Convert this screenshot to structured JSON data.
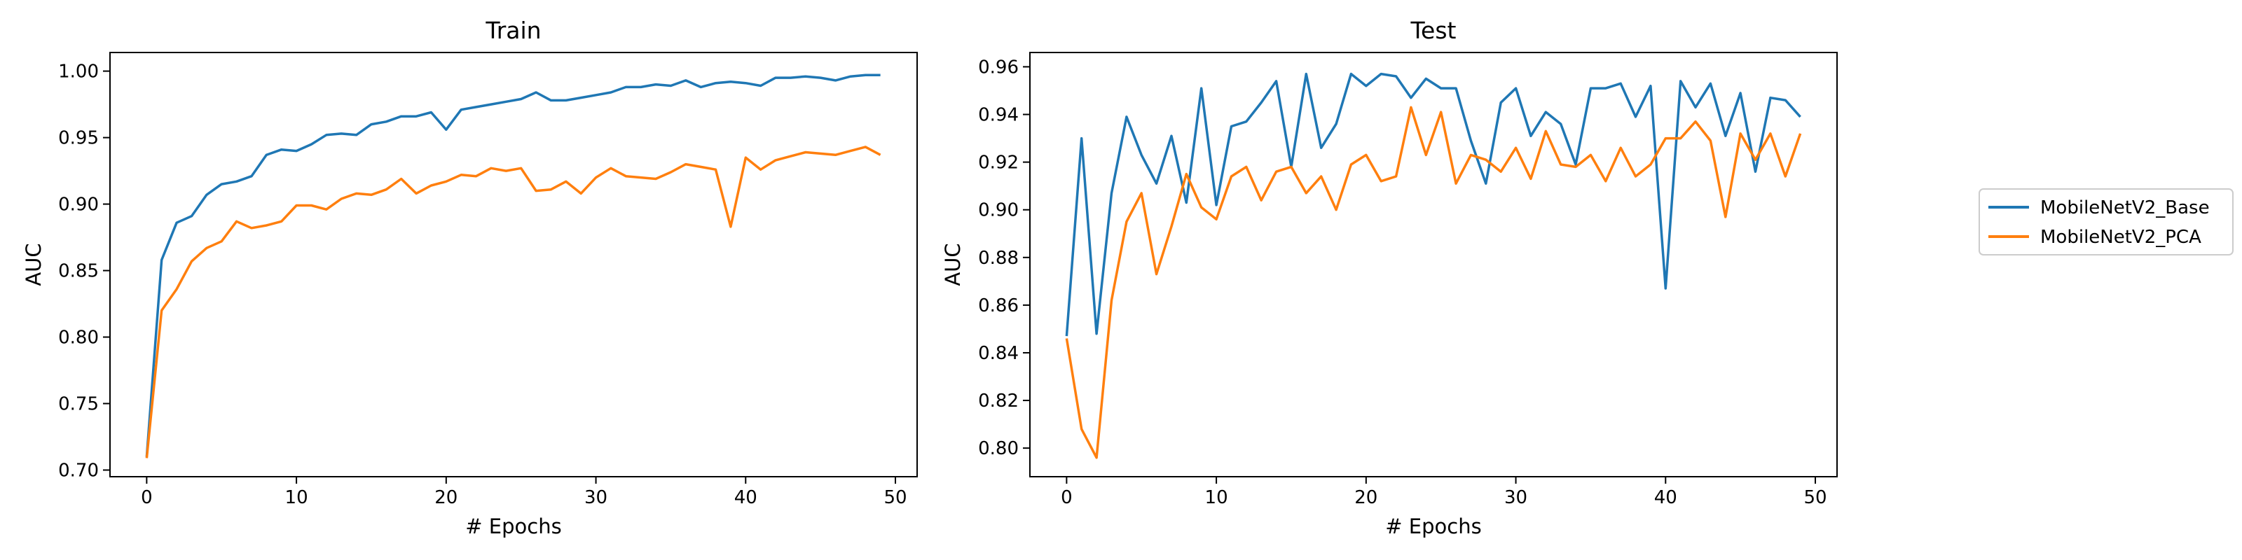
{
  "colors": {
    "MobileNetV2_Base": "#1f77b4",
    "MobileNetV2_PCA": "#ff7f0e"
  },
  "legend": {
    "placement": "outside-right",
    "entries": [
      "MobileNetV2_Base",
      "MobileNetV2_PCA"
    ]
  },
  "chart_data": [
    {
      "type": "line",
      "title": "Train",
      "xlabel": "# Epochs",
      "ylabel": "AUC",
      "xlim": [
        -2.45,
        51.45
      ],
      "ylim": [
        0.695,
        1.014
      ],
      "xticks": [
        0,
        10,
        20,
        30,
        40,
        50
      ],
      "yticks": [
        0.7,
        0.75,
        0.8,
        0.85,
        0.9,
        0.95,
        1.0
      ],
      "ytick_labels": [
        "0.70",
        "0.75",
        "0.80",
        "0.85",
        "0.90",
        "0.95",
        "1.00"
      ],
      "grid": false,
      "x": [
        0,
        1,
        2,
        3,
        4,
        5,
        6,
        7,
        8,
        9,
        10,
        11,
        12,
        13,
        14,
        15,
        16,
        17,
        18,
        19,
        20,
        21,
        22,
        23,
        24,
        25,
        26,
        27,
        28,
        29,
        30,
        31,
        32,
        33,
        34,
        35,
        36,
        37,
        38,
        39,
        40,
        41,
        42,
        43,
        44,
        45,
        46,
        47,
        48,
        49
      ],
      "series": [
        {
          "name": "MobileNetV2_Base",
          "values": [
            0.71,
            0.858,
            0.886,
            0.891,
            0.907,
            0.915,
            0.917,
            0.921,
            0.937,
            0.941,
            0.94,
            0.945,
            0.952,
            0.953,
            0.952,
            0.96,
            0.962,
            0.966,
            0.966,
            0.969,
            0.956,
            0.971,
            0.973,
            0.975,
            0.977,
            0.979,
            0.984,
            0.978,
            0.978,
            0.98,
            0.982,
            0.984,
            0.988,
            0.988,
            0.99,
            0.989,
            0.993,
            0.988,
            0.991,
            0.992,
            0.991,
            0.989,
            0.995,
            0.995,
            0.996,
            0.995,
            0.993,
            0.996,
            0.997,
            0.997
          ]
        },
        {
          "name": "MobileNetV2_PCA",
          "values": [
            0.709,
            0.82,
            0.836,
            0.857,
            0.867,
            0.872,
            0.887,
            0.882,
            0.884,
            0.887,
            0.899,
            0.899,
            0.896,
            0.904,
            0.908,
            0.907,
            0.911,
            0.919,
            0.908,
            0.914,
            0.917,
            0.922,
            0.921,
            0.927,
            0.925,
            0.927,
            0.91,
            0.911,
            0.917,
            0.908,
            0.92,
            0.927,
            0.921,
            0.92,
            0.919,
            0.924,
            0.93,
            0.928,
            0.926,
            0.883,
            0.935,
            0.926,
            0.933,
            0.936,
            0.939,
            0.938,
            0.937,
            0.94,
            0.943,
            0.937
          ]
        }
      ]
    },
    {
      "type": "line",
      "title": "Test",
      "xlabel": "# Epochs",
      "ylabel": "AUC",
      "xlim": [
        -2.45,
        51.45
      ],
      "ylim": [
        0.788,
        0.966
      ],
      "xticks": [
        0,
        10,
        20,
        30,
        40,
        50
      ],
      "yticks": [
        0.8,
        0.82,
        0.84,
        0.86,
        0.88,
        0.9,
        0.92,
        0.94,
        0.96
      ],
      "ytick_labels": [
        "0.80",
        "0.82",
        "0.84",
        "0.86",
        "0.88",
        "0.90",
        "0.92",
        "0.94",
        "0.96"
      ],
      "grid": false,
      "x": [
        0,
        1,
        2,
        3,
        4,
        5,
        6,
        7,
        8,
        9,
        10,
        11,
        12,
        13,
        14,
        15,
        16,
        17,
        18,
        19,
        20,
        21,
        22,
        23,
        24,
        25,
        26,
        27,
        28,
        29,
        30,
        31,
        32,
        33,
        34,
        35,
        36,
        37,
        38,
        39,
        40,
        41,
        42,
        43,
        44,
        45,
        46,
        47,
        48,
        49
      ],
      "series": [
        {
          "name": "MobileNetV2_Base",
          "values": [
            0.847,
            0.93,
            0.848,
            0.907,
            0.939,
            0.923,
            0.911,
            0.931,
            0.903,
            0.951,
            0.902,
            0.935,
            0.937,
            0.945,
            0.954,
            0.918,
            0.957,
            0.926,
            0.936,
            0.957,
            0.952,
            0.957,
            0.956,
            0.947,
            0.955,
            0.951,
            0.951,
            0.929,
            0.911,
            0.945,
            0.951,
            0.931,
            0.941,
            0.936,
            0.919,
            0.951,
            0.951,
            0.953,
            0.939,
            0.952,
            0.867,
            0.954,
            0.943,
            0.953,
            0.931,
            0.949,
            0.916,
            0.947,
            0.946,
            0.939
          ]
        },
        {
          "name": "MobileNetV2_PCA",
          "values": [
            0.846,
            0.808,
            0.796,
            0.862,
            0.895,
            0.907,
            0.873,
            0.893,
            0.915,
            0.901,
            0.896,
            0.914,
            0.918,
            0.904,
            0.916,
            0.918,
            0.907,
            0.914,
            0.9,
            0.919,
            0.923,
            0.912,
            0.914,
            0.943,
            0.923,
            0.941,
            0.911,
            0.923,
            0.921,
            0.916,
            0.926,
            0.913,
            0.933,
            0.919,
            0.918,
            0.923,
            0.912,
            0.926,
            0.914,
            0.919,
            0.93,
            0.93,
            0.937,
            0.929,
            0.897,
            0.932,
            0.921,
            0.932,
            0.914,
            0.932
          ]
        }
      ]
    }
  ]
}
